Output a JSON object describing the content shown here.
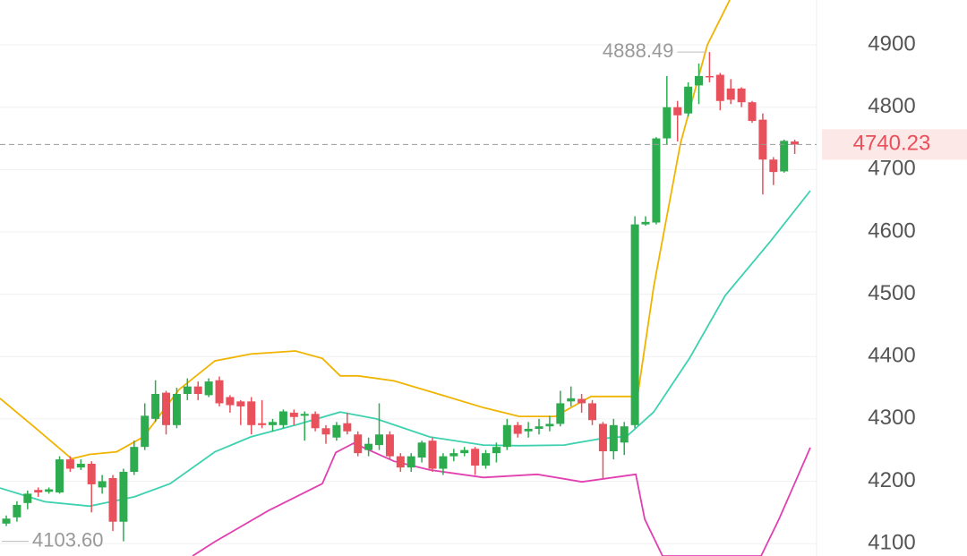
{
  "chart_data": {
    "type": "candlestick",
    "open": [
      4132,
      4142,
      4165,
      4186,
      4183,
      4182,
      4235,
      4222,
      4228,
      4190,
      4205,
      4135,
      4215,
      4255,
      4300,
      4342,
      4290,
      4340,
      4352,
      4338,
      4362,
      4335,
      4328,
      4328,
      4293,
      4290,
      4290,
      4310,
      4305,
      4308,
      4285,
      4270,
      4293,
      4275,
      4250,
      4258,
      4275,
      4240,
      4222,
      4238,
      4265,
      4220,
      4240,
      4245,
      4252,
      4225,
      4245,
      4255,
      4290,
      4280,
      4284,
      4288,
      4292,
      4328,
      4332,
      4325,
      4292,
      4248,
      4262,
      4290,
      4612,
      4615,
      4750,
      4800,
      4790,
      4835,
      4850,
      4852,
      4830,
      4830,
      4808,
      4780,
      4716,
      4697,
      4745
    ],
    "high": [
      4145,
      4168,
      4185,
      4190,
      4190,
      4240,
      4240,
      4235,
      4232,
      4210,
      4210,
      4220,
      4265,
      4325,
      4362,
      4345,
      4350,
      4365,
      4360,
      4365,
      4368,
      4338,
      4330,
      4335,
      4330,
      4300,
      4315,
      4315,
      4312,
      4312,
      4290,
      4295,
      4310,
      4280,
      4270,
      4325,
      4280,
      4245,
      4245,
      4265,
      4270,
      4245,
      4252,
      4255,
      4255,
      4250,
      4262,
      4300,
      4295,
      4295,
      4300,
      4305,
      4345,
      4352,
      4340,
      4330,
      4295,
      4300,
      4295,
      4625,
      4625,
      4752,
      4850,
      4810,
      4840,
      4870,
      4888.49,
      4855,
      4845,
      4832,
      4810,
      4790,
      4720,
      4748,
      4748
    ],
    "low": [
      4128,
      4135,
      4155,
      4175,
      4180,
      4180,
      4215,
      4218,
      4150,
      4180,
      4120,
      4103.6,
      4210,
      4250,
      4295,
      4275,
      4285,
      4330,
      4330,
      4335,
      4320,
      4310,
      4290,
      4275,
      4285,
      4280,
      4285,
      4290,
      4265,
      4280,
      4260,
      4265,
      4275,
      4240,
      4240,
      4250,
      4235,
      4215,
      4215,
      4230,
      4215,
      4210,
      4232,
      4240,
      4210,
      4220,
      4230,
      4250,
      4270,
      4270,
      4275,
      4280,
      4288,
      4320,
      4310,
      4290,
      4205,
      4235,
      4242,
      4285,
      4610,
      4612,
      4740,
      4745,
      4785,
      4805,
      4840,
      4795,
      4805,
      4800,
      4775,
      4660,
      4675,
      4695,
      4725
    ],
    "close": [
      4140,
      4162,
      4180,
      4182,
      4187,
      4235,
      4220,
      4228,
      4195,
      4200,
      4135,
      4215,
      4255,
      4305,
      4340,
      4290,
      4340,
      4352,
      4340,
      4360,
      4325,
      4322,
      4320,
      4290,
      4290,
      4295,
      4312,
      4303,
      4308,
      4285,
      4275,
      4290,
      4280,
      4245,
      4260,
      4275,
      4240,
      4222,
      4240,
      4262,
      4220,
      4240,
      4245,
      4250,
      4225,
      4245,
      4255,
      4290,
      4276,
      4284,
      4288,
      4292,
      4325,
      4333,
      4325,
      4298,
      4248,
      4290,
      4288,
      4612,
      4616,
      4750,
      4800,
      4787,
      4833,
      4850,
      4848,
      4810,
      4812,
      4808,
      4778,
      4716,
      4696,
      4746,
      4740.23
    ],
    "bands": [
      {
        "name": "upper",
        "color": "#f0b400",
        "x": [
          -0.59,
          2.77,
          6.13,
          7.82,
          10.34,
          12.86,
          16.22,
          19.58,
          22.94,
          27.14,
          29.66,
          31.34,
          33.03,
          36.39,
          39.75,
          44.79,
          48.15,
          51.51,
          54.87,
          59.24,
          60.76,
          63.28,
          65.8,
          67.9
        ],
        "values": [
          4333,
          4285,
          4236,
          4243,
          4247,
          4271,
          4347,
          4393,
          4404,
          4409,
          4397,
          4369,
          4369,
          4361,
          4344,
          4318,
          4304,
          4304,
          4336,
          4336,
          4512,
          4742,
          4900,
          4972
        ]
      },
      {
        "name": "middle",
        "color": "#3dd1b0",
        "x": [
          -0.59,
          3.61,
          7.82,
          12.02,
          15.38,
          19.58,
          22.94,
          27.14,
          31.34,
          34.71,
          39.75,
          44.79,
          48.15,
          52.35,
          55.71,
          58.24,
          60.76,
          64.12,
          67.48,
          71.68,
          75.46
        ],
        "values": [
          4189,
          4167,
          4160,
          4175,
          4196,
          4247,
          4271,
          4290,
          4311,
          4300,
          4271,
          4258,
          4257,
          4258,
          4268,
          4272,
          4311,
          4397,
          4498,
          4584,
          4666
        ]
      },
      {
        "name": "lower",
        "color": "#e040b0",
        "x": [
          17.48,
          19.58,
          24.62,
          29.66,
          30.92,
          32.61,
          36.39,
          39.75,
          44.79,
          49.83,
          54.03,
          59.08,
          59.92,
          61.6,
          70.84,
          72.52,
          75.46
        ],
        "values": [
          4080,
          4103,
          4153,
          4196,
          4246,
          4261,
          4232,
          4218,
          4206,
          4211,
          4199,
          4211,
          4139,
          4080,
          4080,
          4139,
          4254
        ]
      }
    ],
    "up_color": "#2dab4f",
    "down_color": "#e8505b",
    "max_label": 4888.49,
    "min_label": {
      "value": 4103.6,
      "label": "4103.60"
    },
    "last_price": 4740.23,
    "xlim": [
      -0.59,
      76.05
    ],
    "ylim": [
      4080,
      4972
    ],
    "yticks": [
      4100,
      4200,
      4300,
      4400,
      4500,
      4600,
      4700,
      4800,
      4900
    ],
    "grid": true
  }
}
